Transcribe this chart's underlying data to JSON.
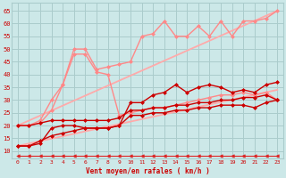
{
  "bg_color": "#cce8e8",
  "grid_color": "#aacccc",
  "xlabel": "Vent moyen/en rafales ( km/h )",
  "xlim": [
    -0.5,
    23.5
  ],
  "ylim": [
    7,
    68
  ],
  "yticks": [
    10,
    15,
    20,
    25,
    30,
    35,
    40,
    45,
    50,
    55,
    60,
    65
  ],
  "xticks": [
    0,
    1,
    2,
    3,
    4,
    5,
    6,
    7,
    8,
    9,
    10,
    11,
    12,
    13,
    14,
    15,
    16,
    17,
    18,
    19,
    20,
    21,
    22,
    23
  ],
  "lines": [
    {
      "x": [
        0,
        1,
        2,
        3,
        4,
        5,
        6,
        7,
        8,
        9,
        10,
        11,
        12,
        13,
        14,
        15,
        16,
        17,
        18,
        19,
        20,
        21,
        22,
        23
      ],
      "y": [
        8,
        8,
        8,
        8,
        8,
        8,
        8,
        8,
        8,
        8,
        8,
        8,
        8,
        8,
        8,
        8,
        8,
        8,
        8,
        8,
        8,
        8,
        8,
        8
      ],
      "color": "#dd2222",
      "lw": 0.8,
      "marker": "<",
      "ms": 2.5,
      "ls": "-",
      "zorder": 3
    },
    {
      "x": [
        0,
        23
      ],
      "y": [
        12,
        34
      ],
      "color": "#ffaaaa",
      "lw": 1.3,
      "marker": null,
      "ms": 0,
      "ls": "-",
      "zorder": 2
    },
    {
      "x": [
        0,
        23
      ],
      "y": [
        20,
        65
      ],
      "color": "#ffaaaa",
      "lw": 1.3,
      "marker": null,
      "ms": 0,
      "ls": "-",
      "zorder": 2
    },
    {
      "x": [
        0,
        1,
        2,
        3,
        4,
        5,
        6,
        7,
        8,
        9,
        10,
        11,
        12,
        13,
        14,
        15,
        16,
        17,
        18,
        19,
        20,
        21,
        22,
        23
      ],
      "y": [
        12,
        12,
        13,
        19,
        20,
        20,
        19,
        19,
        19,
        20,
        24,
        24,
        25,
        25,
        26,
        26,
        27,
        27,
        28,
        28,
        28,
        27,
        29,
        30
      ],
      "color": "#cc0000",
      "lw": 1.0,
      "marker": "D",
      "ms": 2.0,
      "ls": "-",
      "zorder": 4
    },
    {
      "x": [
        0,
        1,
        2,
        3,
        4,
        5,
        6,
        7,
        8,
        9,
        10,
        11,
        12,
        13,
        14,
        15,
        16,
        17,
        18,
        19,
        20,
        21,
        22,
        23
      ],
      "y": [
        20,
        20,
        21,
        22,
        22,
        22,
        22,
        22,
        22,
        23,
        26,
        26,
        27,
        27,
        28,
        28,
        29,
        29,
        30,
        30,
        31,
        31,
        32,
        30
      ],
      "color": "#cc0000",
      "lw": 1.0,
      "marker": "D",
      "ms": 2.0,
      "ls": "-",
      "zorder": 4
    },
    {
      "x": [
        0,
        1,
        2,
        3,
        4,
        5,
        6,
        7,
        8,
        9,
        10,
        11,
        12,
        13,
        14,
        15,
        16,
        17,
        18,
        19,
        20,
        21,
        22,
        23
      ],
      "y": [
        12,
        12,
        14,
        16,
        17,
        18,
        19,
        19,
        19,
        20,
        29,
        29,
        32,
        33,
        36,
        33,
        35,
        36,
        35,
        33,
        34,
        33,
        36,
        37
      ],
      "color": "#cc0000",
      "lw": 1.0,
      "marker": "D",
      "ms": 2.0,
      "ls": "-",
      "zorder": 4
    },
    {
      "x": [
        0,
        1,
        2,
        3,
        4,
        5,
        6,
        7,
        8,
        9,
        10,
        11,
        12,
        13,
        14,
        15,
        16,
        17,
        18,
        19,
        20,
        21,
        22,
        23
      ],
      "y": [
        20,
        20,
        21,
        26,
        36,
        48,
        48,
        41,
        40,
        24,
        25,
        26,
        27,
        27,
        28,
        29,
        30,
        31,
        32,
        32,
        33,
        32,
        33,
        30
      ],
      "color": "#ff8888",
      "lw": 1.0,
      "marker": "D",
      "ms": 2.0,
      "ls": "-",
      "zorder": 3
    },
    {
      "x": [
        0,
        1,
        2,
        3,
        4,
        5,
        6,
        7,
        8,
        9,
        10,
        11,
        12,
        13,
        14,
        15,
        16,
        17,
        18,
        19,
        20,
        21,
        22,
        23
      ],
      "y": [
        20,
        20,
        22,
        30,
        36,
        50,
        50,
        42,
        43,
        44,
        45,
        55,
        56,
        61,
        55,
        55,
        59,
        55,
        61,
        55,
        61,
        61,
        62,
        65
      ],
      "color": "#ff8888",
      "lw": 1.0,
      "marker": "D",
      "ms": 2.0,
      "ls": "-",
      "zorder": 3
    }
  ]
}
